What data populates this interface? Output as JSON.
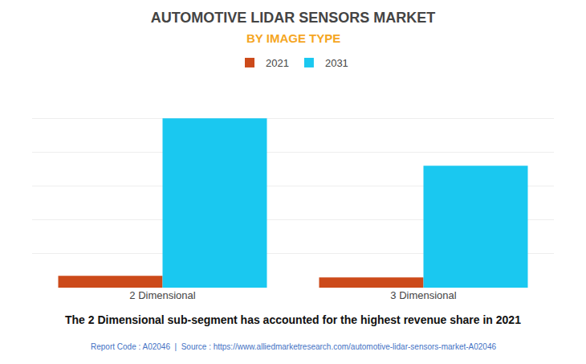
{
  "chart_data": {
    "type": "bar",
    "title": "AUTOMOTIVE LIDAR SENSORS MARKET",
    "subtitle": "BY IMAGE TYPE",
    "categories": [
      "2 Dimensional",
      "3 Dimensional"
    ],
    "series": [
      {
        "name": "2021",
        "color": "#CC4A1A",
        "values": [
          7,
          6
        ]
      },
      {
        "name": "2031",
        "color": "#1AC8F0",
        "values": [
          100,
          72
        ]
      }
    ],
    "ylim": [
      0,
      120
    ],
    "yticks": [
      0,
      20,
      40,
      60,
      80,
      100,
      120
    ],
    "grid": true,
    "legend": "top",
    "tick_labels": "x",
    "annotations": [
      "The 2 Dimensional sub-segment has accounted for the highest revenue share in 2021",
      "Report Code : A02046  |  Source : https://www.alliedmarketresearch.com/automotive-lidar-sensors-market-A02046"
    ]
  }
}
